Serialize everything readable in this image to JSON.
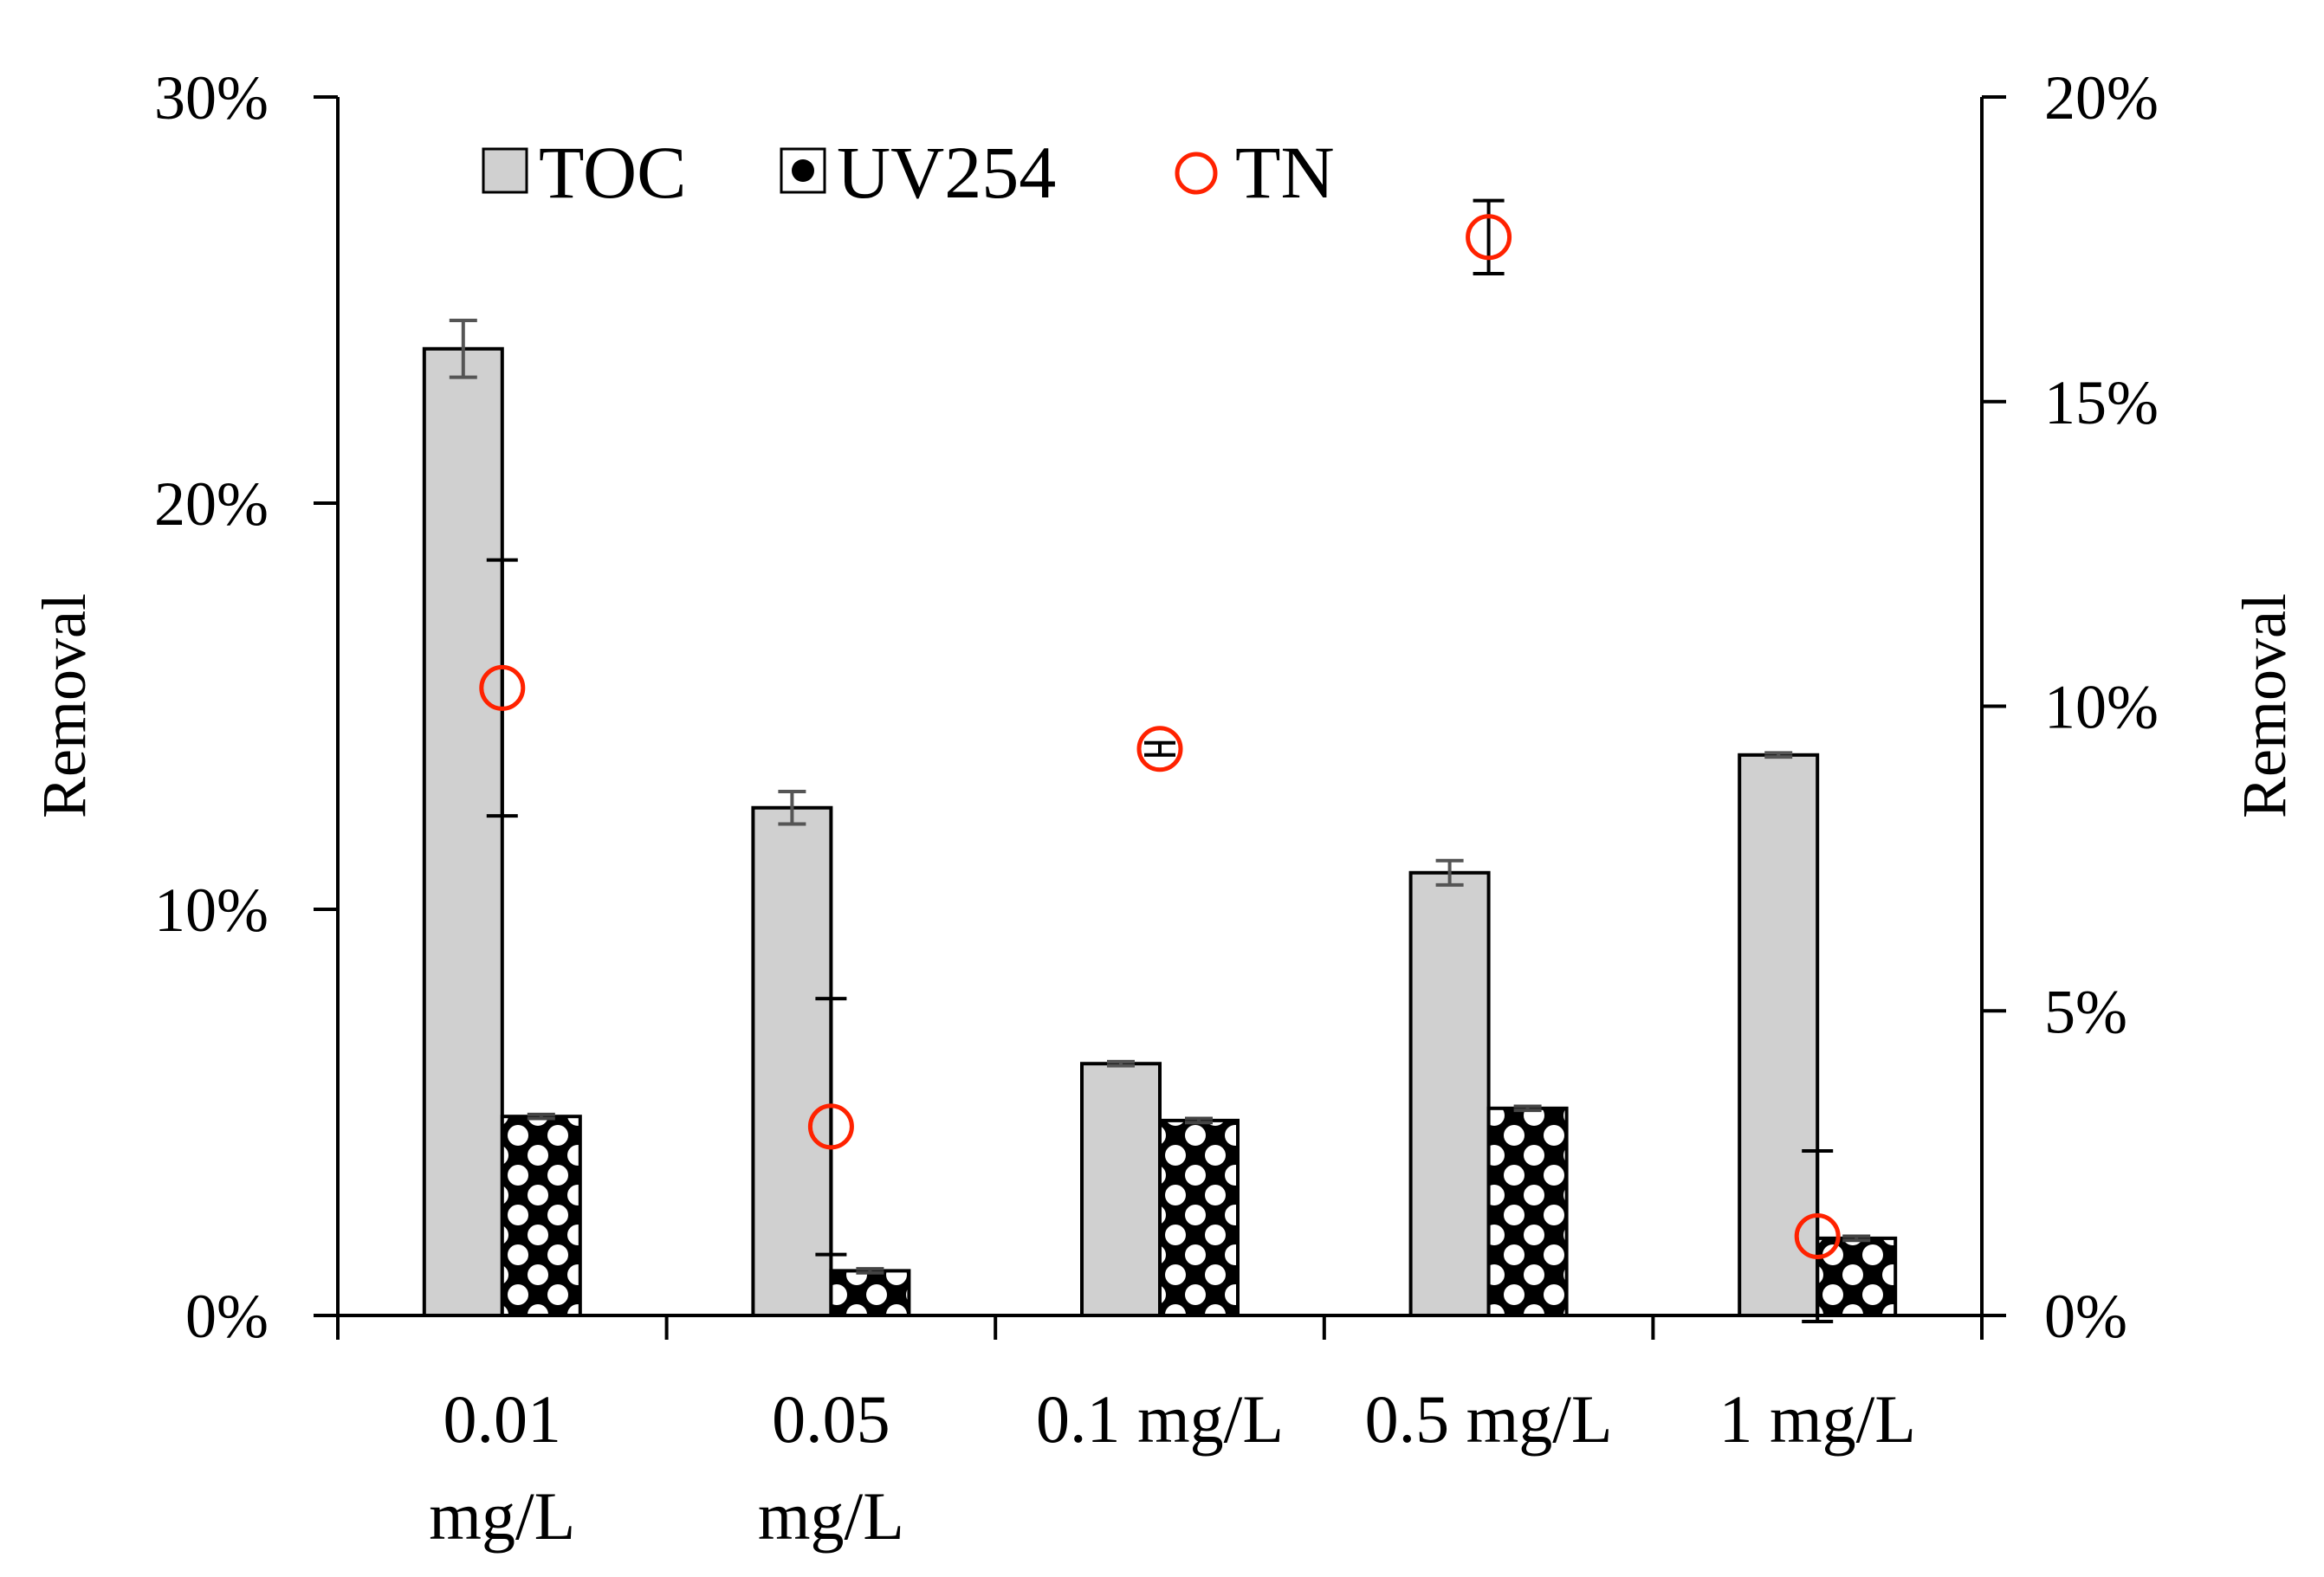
{
  "chart_data": {
    "type": "bar",
    "categories": [
      [
        "0.01",
        "mg/L"
      ],
      [
        "0.05",
        "mg/L"
      ],
      [
        "0.1 mg/L"
      ],
      [
        "0.5 mg/L"
      ],
      [
        "1 mg/L"
      ]
    ],
    "series": [
      {
        "name": "TOC",
        "axis": "left",
        "kind": "bar",
        "fill": "#d0d0d0",
        "values": [
          23.8,
          12.5,
          6.2,
          10.9,
          13.8
        ],
        "errors": [
          0.7,
          0.4,
          0.05,
          0.3,
          0.05
        ]
      },
      {
        "name": "UV254",
        "axis": "left",
        "kind": "bar",
        "fill": "pattern",
        "values": [
          4.9,
          1.1,
          4.8,
          5.1,
          1.9
        ],
        "errors": [
          0.05,
          0.05,
          0.05,
          0.05,
          0.05
        ]
      },
      {
        "name": "TN",
        "axis": "right",
        "kind": "scatter",
        "color": "#ff2200",
        "values": [
          10.3,
          3.1,
          9.3,
          17.7,
          1.3
        ],
        "errors": [
          2.1,
          2.1,
          0.1,
          0.6,
          1.4
        ]
      }
    ],
    "y_left": {
      "label": "Removal",
      "min": 0,
      "max": 30,
      "ticks": [
        "0%",
        "10%",
        "20%",
        "30%"
      ],
      "tick_values": [
        0,
        10,
        20,
        30
      ]
    },
    "y_right": {
      "label": "Removal",
      "min": 0,
      "max": 20,
      "ticks": [
        "0%",
        "5%",
        "10%",
        "15%",
        "20%"
      ],
      "tick_values": [
        0,
        5,
        10,
        15,
        20
      ]
    },
    "legend": {
      "placement": "top-left",
      "items": [
        "TOC",
        "UV254",
        "TN"
      ]
    },
    "grid": false
  }
}
